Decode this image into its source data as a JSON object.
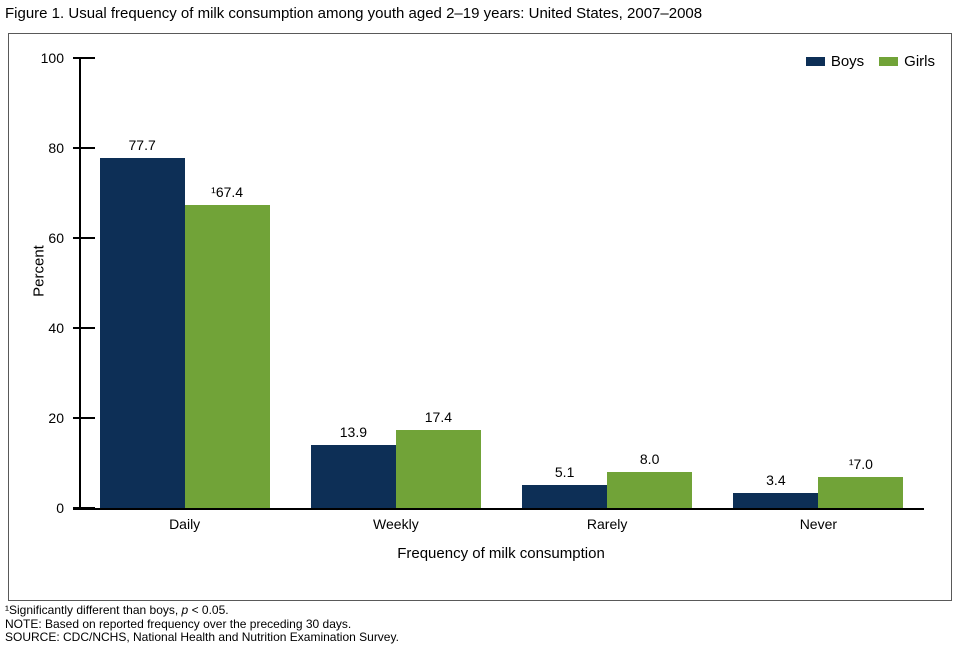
{
  "title": "Figure 1. Usual frequency of milk consumption among youth aged 2–19 years: United States, 2007–2008",
  "chart_data": {
    "type": "bar",
    "categories": [
      "Daily",
      "Weekly",
      "Rarely",
      "Never"
    ],
    "series": [
      {
        "name": "Boys",
        "color": "#0d2f56",
        "values": [
          77.7,
          13.9,
          5.1,
          3.4
        ],
        "labels": [
          "77.7",
          "13.9",
          "5.1",
          "3.4"
        ]
      },
      {
        "name": "Girls",
        "color": "#71a338",
        "values": [
          67.4,
          17.4,
          8.0,
          7.0
        ],
        "labels": [
          "¹67.4",
          "17.4",
          "8.0",
          "¹7.0"
        ]
      }
    ],
    "title": "Figure 1. Usual frequency of milk consumption among youth aged 2–19 years: United States, 2007–2008",
    "xlabel": "Frequency of milk consumption",
    "ylabel": "Percent",
    "ylim": [
      0,
      100
    ],
    "yticks": [
      0,
      20,
      40,
      60,
      80,
      100
    ],
    "grid": false,
    "legend_position": "top-right"
  },
  "footnotes": {
    "line1_prefix": "¹Significantly different than boys, ",
    "line1_italic": "p",
    "line1_suffix": " < 0.05.",
    "line2": "NOTE: Based on reported frequency over the preceding 30 days.",
    "line3": "SOURCE: CDC/NCHS, National Health and Nutrition Examination Survey."
  }
}
